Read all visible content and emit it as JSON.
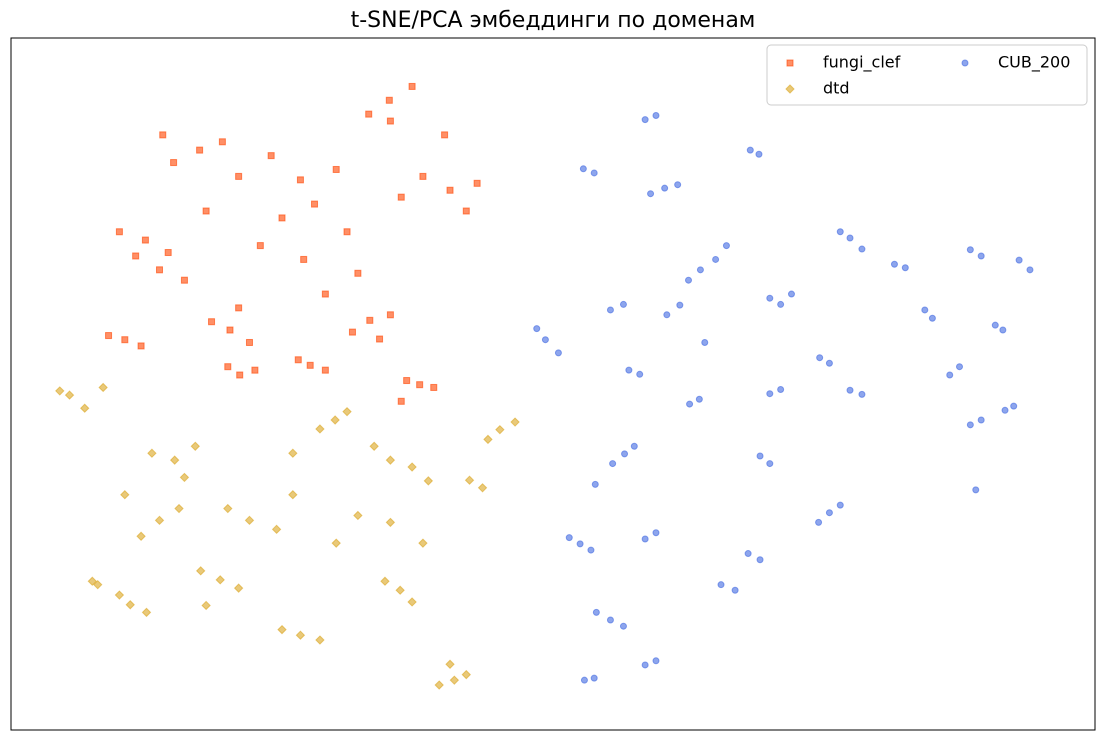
{
  "chart_data": {
    "type": "scatter",
    "title": "t-SNE/PCA эмбеддинги по доменам",
    "xlim": [
      0,
      100
    ],
    "ylim": [
      0,
      100
    ],
    "legend": "upper right",
    "alpha": 0.6,
    "series": [
      {
        "name": "fungi_clef",
        "color": "#ff4500",
        "marker": "square",
        "x": [
          12.4,
          10,
          14.5,
          11.5,
          13.7,
          16,
          17.4,
          15,
          19.5,
          21,
          24,
          26.7,
          28,
          30,
          25,
          23,
          27,
          31,
          34.9,
          33,
          37,
          35,
          40,
          40.5,
          38,
          43,
          42,
          36,
          20.2,
          18.5,
          22,
          21,
          33.1,
          31.5,
          35,
          34,
          10.5,
          9,
          12,
          21.1,
          20,
          22.5,
          27.6,
          26.5,
          29,
          37.7,
          36.5,
          39,
          36,
          18,
          32,
          29,
          14
        ],
        "values": [
          70.8,
          72,
          69,
          68.5,
          66.5,
          65,
          83.8,
          82,
          85,
          80,
          83,
          79.5,
          76,
          81,
          74,
          70,
          68,
          72,
          91,
          89,
          93,
          88,
          86,
          78,
          80,
          79,
          75,
          77,
          57.8,
          59,
          56,
          61,
          59.2,
          57.5,
          60,
          56.5,
          56.4,
          57,
          55.5,
          51.3,
          52.5,
          52,
          52.7,
          53.5,
          52,
          49.9,
          50.5,
          49.5,
          47.5,
          75,
          66,
          63,
          86
        ]
      },
      {
        "name": "dtd",
        "color": "#daa520",
        "marker": "diamond",
        "x": [
          5.4,
          4.5,
          6.8,
          8.5,
          15.1,
          13,
          17,
          16,
          29.9,
          28.5,
          31,
          26,
          35,
          33.5,
          37,
          38.5,
          45.1,
          44,
          46.5,
          42.3,
          43.5,
          11,
          10,
          12.5,
          8,
          19.3,
          17.5,
          21,
          18,
          26.7,
          25,
          28.5,
          35.9,
          34.5,
          37,
          40.9,
          39.5,
          42,
          40.5,
          22,
          20,
          24.5,
          26,
          13.7,
          12,
          15.5,
          30,
          32,
          35,
          10.5,
          7.5,
          38
        ],
        "values": [
          48.4,
          49,
          46.5,
          49.5,
          39,
          40,
          41,
          36.5,
          44.8,
          43.5,
          46,
          40,
          39,
          41,
          38,
          36,
          43.4,
          42,
          44.5,
          36.1,
          35,
          18.1,
          19.5,
          17,
          21,
          21.7,
          23,
          20.5,
          18,
          13.7,
          14.5,
          13,
          20.2,
          21.5,
          18.5,
          7.2,
          6.5,
          8,
          9.5,
          30.3,
          32,
          29,
          34,
          30.3,
          28,
          32,
          27,
          31,
          30,
          34,
          21.5,
          27
        ]
      },
      {
        "name": "CUB_200",
        "color": "#4169e1",
        "marker": "circle",
        "x": [
          58.5,
          59.5,
          68.2,
          69,
          52.8,
          53.8,
          60.3,
          61.5,
          59,
          63.6,
          62.5,
          65,
          49.3,
          48.5,
          50.5,
          55.3,
          56.5,
          70,
          71,
          77.4,
          78.5,
          76.5,
          93,
          94,
          88.5,
          89.5,
          84.3,
          85,
          86.6,
          87.5,
          90.8,
          91.5,
          91.7,
          92.5,
          88.5,
          89.5,
          89,
          77.4,
          78.5,
          70,
          71,
          62.6,
          63.5,
          56.6,
          57.5,
          55.5,
          53.9,
          52.5,
          51.5,
          53.5,
          58.5,
          59.5,
          69.1,
          70,
          75.5,
          76.5,
          74.5,
          69.1,
          68,
          66.8,
          65.5,
          55.3,
          54,
          56.5,
          58.5,
          59.5,
          52.9,
          53.8,
          74.6,
          75.5,
          58,
          57,
          81.5,
          82.5,
          61.7,
          60.5,
          66,
          72,
          64
        ],
        "values": [
          88.2,
          88.8,
          83.8,
          83.2,
          81.1,
          80.5,
          78.3,
          78.8,
          77.5,
          66.5,
          65,
          68,
          56.4,
          58,
          54.5,
          60.7,
          61.5,
          62.4,
          61.5,
          71.1,
          69.5,
          72,
          67.9,
          66.5,
          69.4,
          68.5,
          60.7,
          59.5,
          51.3,
          52.5,
          58.5,
          57.8,
          46.2,
          46.8,
          44.1,
          44.8,
          34.7,
          49.1,
          48.5,
          48.6,
          49.2,
          47.1,
          47.8,
          39.9,
          41,
          38.5,
          35.5,
          26.9,
          27.8,
          26,
          27.6,
          28.5,
          39.6,
          38.5,
          31.4,
          32.5,
          30,
          24.6,
          25.5,
          20.2,
          21,
          15.9,
          17,
          15,
          9.4,
          10,
          7.2,
          7.5,
          53.8,
          53,
          51.4,
          52,
          67.3,
          66.8,
          61.4,
          60,
          70,
          63,
          56
        ]
      }
    ]
  }
}
